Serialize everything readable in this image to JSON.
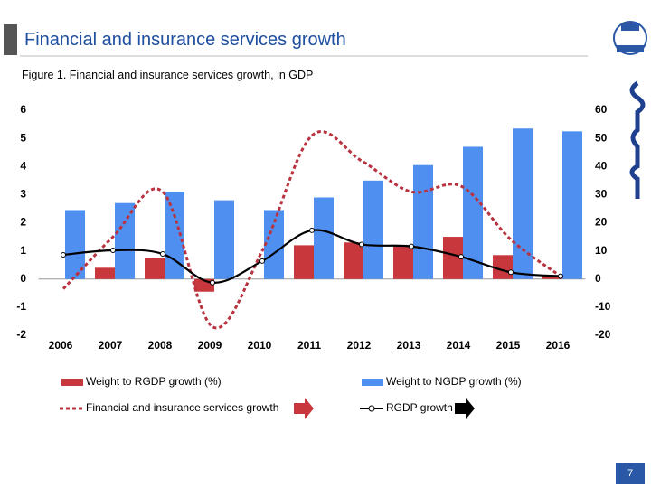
{
  "title": "Financial and insurance services growth",
  "page_number": "7",
  "chart_data": {
    "type": "bar-line",
    "title": "Figure 1. Financial and insurance services growth, in GDP",
    "categories": [
      "2006",
      "2007",
      "2008",
      "2009",
      "2010",
      "2011",
      "2012",
      "2013",
      "2014",
      "2015",
      "2016"
    ],
    "series": [
      {
        "name": "Weight to RGDP growth (%)",
        "type": "bar",
        "color": "#c8373c",
        "values": [
          0,
          0.4,
          0.75,
          -0.45,
          0,
          1.2,
          1.3,
          1.2,
          1.5,
          0.85,
          0.1
        ]
      },
      {
        "name": "Weight to NGDP growth (%)",
        "type": "bar",
        "color": "#4f8ff0",
        "values": [
          2.45,
          2.7,
          3.1,
          2.8,
          2.45,
          2.9,
          3.5,
          4.05,
          4.7,
          5.35,
          5.25
        ]
      },
      {
        "name": "Financial and insurance services growth",
        "type": "dashed-line",
        "axis": "y2",
        "color": "#b8323f",
        "values": [
          -3.5,
          15,
          31,
          -17,
          10,
          51,
          42,
          31,
          33,
          14,
          1
        ]
      },
      {
        "name": "RGDP growth",
        "type": "marker-line",
        "axis": "y2",
        "color": "#000000",
        "values": [
          8.6,
          10.2,
          8.9,
          -1.3,
          6.4,
          17.3,
          12.3,
          11.6,
          7.9,
          2.4,
          1.0
        ]
      }
    ],
    "ylim": [
      -2,
      6
    ],
    "yticks": [
      -2,
      -1,
      0,
      1,
      2,
      3,
      4,
      5,
      6
    ],
    "y2lim": [
      -20,
      60
    ],
    "y2ticks": [
      -20,
      -10,
      0,
      10,
      20,
      30,
      40,
      50,
      60
    ]
  }
}
